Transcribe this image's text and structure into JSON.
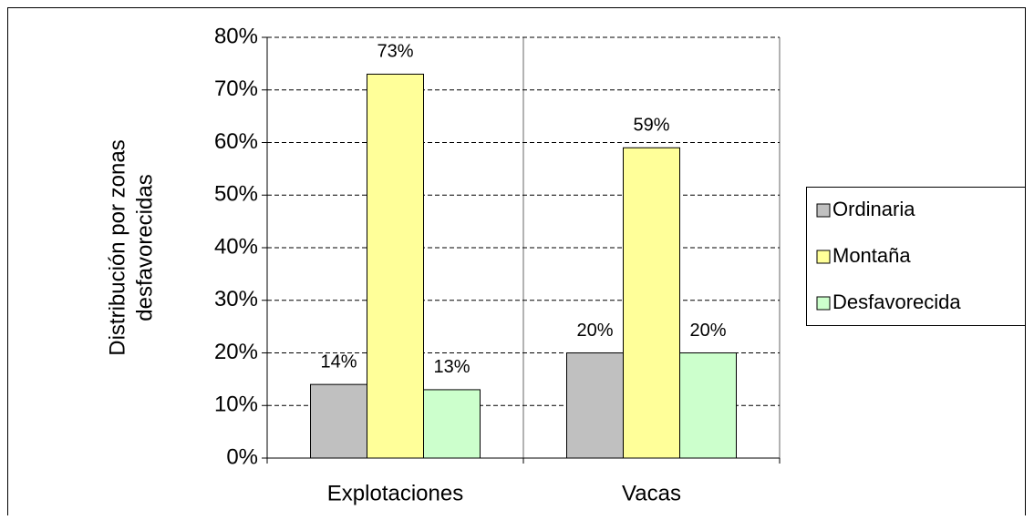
{
  "chart_data": {
    "type": "bar",
    "categories": [
      "Explotaciones",
      "Vacas"
    ],
    "ylabel": [
      "Distribución por zonas",
      "desfavorecidas"
    ],
    "series": [
      {
        "name": "Ordinaria",
        "color": "#c0c0c0",
        "values": [
          14,
          20
        ],
        "value_labels": [
          "14%",
          "20%"
        ]
      },
      {
        "name": "Montaña",
        "color": "#ffff99",
        "values": [
          73,
          59
        ],
        "value_labels": [
          "73%",
          "59%"
        ]
      },
      {
        "name": "Desfavorecida",
        "color": "#ccffcc",
        "values": [
          13,
          20
        ],
        "value_labels": [
          "13%",
          "20%"
        ]
      }
    ],
    "ylim": [
      0,
      80
    ],
    "yticks": [
      {
        "value": 0,
        "label": "0%"
      },
      {
        "value": 10,
        "label": "10%"
      },
      {
        "value": 20,
        "label": "20%"
      },
      {
        "value": 30,
        "label": "30%"
      },
      {
        "value": 40,
        "label": "40%"
      },
      {
        "value": 50,
        "label": "50%"
      },
      {
        "value": 60,
        "label": "60%"
      },
      {
        "value": 70,
        "label": "70%"
      },
      {
        "value": 80,
        "label": "80%"
      }
    ],
    "grid": true,
    "legend": "right"
  }
}
